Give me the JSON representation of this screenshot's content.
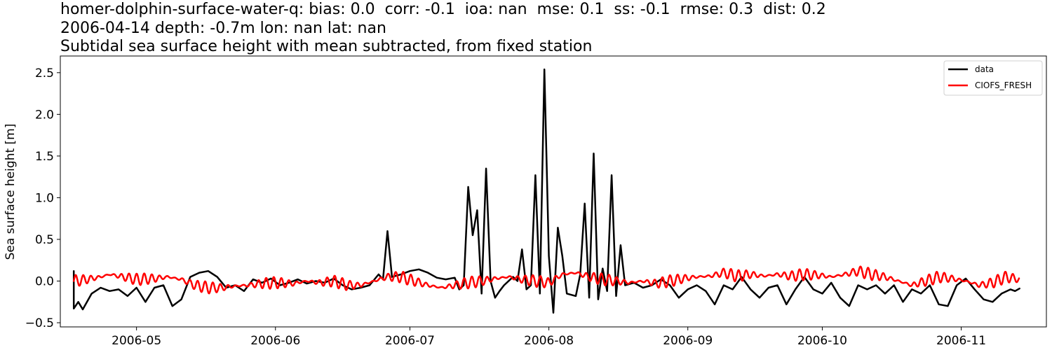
{
  "title_lines": [
    "homer-dolphin-surface-water-q: bias: 0.0  corr: -0.1  ioa: nan  mse: 0.1  ss: -0.1  rmse: 0.3  dist: 0.2",
    "2006-04-14 depth: -0.7m lon: nan lat: nan",
    "Subtidal sea surface height with mean subtracted, from fixed station"
  ],
  "chart_data": {
    "type": "line",
    "ylabel": "Sea surface height [m]",
    "xlabel": "",
    "xlim": [
      "2006-04-14",
      "2006-11-20"
    ],
    "ylim": [
      -0.55,
      2.7
    ],
    "yticks": [
      -0.5,
      0.0,
      0.5,
      1.0,
      1.5,
      2.0,
      2.5
    ],
    "ytick_labels": [
      "−0.5",
      "0.0",
      "0.5",
      "1.0",
      "1.5",
      "2.0",
      "2.5"
    ],
    "xticks": [
      "2006-05-01",
      "2006-06-01",
      "2006-07-01",
      "2006-08-01",
      "2006-09-01",
      "2006-10-01",
      "2006-11-01"
    ],
    "xtick_labels": [
      "2006-05",
      "2006-06",
      "2006-07",
      "2006-08",
      "2006-09",
      "2006-10",
      "2006-11"
    ],
    "grid": false,
    "legend_position": "top-right",
    "series": [
      {
        "name": "data",
        "color": "#000000",
        "points": [
          [
            "2006-04-17",
            0.12
          ],
          [
            "2006-04-17",
            -0.33
          ],
          [
            "2006-04-18",
            -0.25
          ],
          [
            "2006-04-19",
            -0.34
          ],
          [
            "2006-04-21",
            -0.15
          ],
          [
            "2006-04-23",
            -0.08
          ],
          [
            "2006-04-25",
            -0.12
          ],
          [
            "2006-04-27",
            -0.1
          ],
          [
            "2006-04-29",
            -0.18
          ],
          [
            "2006-05-01",
            -0.08
          ],
          [
            "2006-05-03",
            -0.25
          ],
          [
            "2006-05-05",
            -0.08
          ],
          [
            "2006-05-07",
            -0.05
          ],
          [
            "2006-05-09",
            -0.3
          ],
          [
            "2006-05-11",
            -0.22
          ],
          [
            "2006-05-13",
            0.05
          ],
          [
            "2006-05-15",
            0.1
          ],
          [
            "2006-05-17",
            0.12
          ],
          [
            "2006-05-19",
            0.05
          ],
          [
            "2006-05-21",
            -0.08
          ],
          [
            "2006-05-23",
            -0.05
          ],
          [
            "2006-05-25",
            -0.12
          ],
          [
            "2006-05-27",
            0.02
          ],
          [
            "2006-05-29",
            -0.02
          ],
          [
            "2006-05-31",
            0.03
          ],
          [
            "2006-06-02",
            -0.05
          ],
          [
            "2006-06-04",
            -0.02
          ],
          [
            "2006-06-06",
            0.02
          ],
          [
            "2006-06-08",
            -0.03
          ],
          [
            "2006-06-10",
            0.0
          ],
          [
            "2006-06-12",
            -0.02
          ],
          [
            "2006-06-14",
            0.03
          ],
          [
            "2006-06-16",
            -0.05
          ],
          [
            "2006-06-18",
            -0.1
          ],
          [
            "2006-06-20",
            -0.08
          ],
          [
            "2006-06-22",
            -0.05
          ],
          [
            "2006-06-24",
            0.08
          ],
          [
            "2006-06-25",
            0.02
          ],
          [
            "2006-06-26",
            0.6
          ],
          [
            "2006-06-27",
            0.05
          ],
          [
            "2006-06-29",
            0.08
          ],
          [
            "2006-07-01",
            0.12
          ],
          [
            "2006-07-03",
            0.14
          ],
          [
            "2006-07-05",
            0.1
          ],
          [
            "2006-07-07",
            0.04
          ],
          [
            "2006-07-09",
            0.02
          ],
          [
            "2006-07-11",
            0.04
          ],
          [
            "2006-07-12",
            -0.1
          ],
          [
            "2006-07-13",
            -0.05
          ],
          [
            "2006-07-14",
            1.13
          ],
          [
            "2006-07-15",
            0.55
          ],
          [
            "2006-07-16",
            0.85
          ],
          [
            "2006-07-17",
            -0.15
          ],
          [
            "2006-07-18",
            1.35
          ],
          [
            "2006-07-19",
            0.0
          ],
          [
            "2006-07-20",
            -0.2
          ],
          [
            "2006-07-21",
            -0.12
          ],
          [
            "2006-07-22",
            -0.05
          ],
          [
            "2006-07-24",
            0.05
          ],
          [
            "2006-07-25",
            0.0
          ],
          [
            "2006-07-26",
            0.38
          ],
          [
            "2006-07-27",
            -0.1
          ],
          [
            "2006-07-28",
            -0.05
          ],
          [
            "2006-07-29",
            1.27
          ],
          [
            "2006-07-30",
            -0.15
          ],
          [
            "2006-07-31",
            2.54
          ],
          [
            "2006-08-01",
            0.3
          ],
          [
            "2006-08-02",
            -0.38
          ],
          [
            "2006-08-03",
            0.64
          ],
          [
            "2006-08-04",
            0.3
          ],
          [
            "2006-08-05",
            -0.15
          ],
          [
            "2006-08-07",
            -0.18
          ],
          [
            "2006-08-08",
            0.08
          ],
          [
            "2006-08-09",
            0.93
          ],
          [
            "2006-08-10",
            -0.2
          ],
          [
            "2006-08-11",
            1.53
          ],
          [
            "2006-08-12",
            -0.22
          ],
          [
            "2006-08-13",
            0.15
          ],
          [
            "2006-08-14",
            -0.12
          ],
          [
            "2006-08-15",
            1.27
          ],
          [
            "2006-08-16",
            -0.18
          ],
          [
            "2006-08-17",
            0.43
          ],
          [
            "2006-08-18",
            -0.05
          ],
          [
            "2006-08-20",
            -0.02
          ],
          [
            "2006-08-22",
            -0.08
          ],
          [
            "2006-08-24",
            -0.05
          ],
          [
            "2006-08-26",
            0.02
          ],
          [
            "2006-08-28",
            -0.05
          ],
          [
            "2006-08-30",
            -0.2
          ],
          [
            "2006-09-01",
            -0.1
          ],
          [
            "2006-09-03",
            -0.05
          ],
          [
            "2006-09-05",
            -0.12
          ],
          [
            "2006-09-07",
            -0.28
          ],
          [
            "2006-09-09",
            -0.05
          ],
          [
            "2006-09-11",
            -0.1
          ],
          [
            "2006-09-13",
            0.05
          ],
          [
            "2006-09-15",
            -0.1
          ],
          [
            "2006-09-17",
            -0.2
          ],
          [
            "2006-09-19",
            -0.08
          ],
          [
            "2006-09-21",
            -0.05
          ],
          [
            "2006-09-23",
            -0.28
          ],
          [
            "2006-09-25",
            -0.1
          ],
          [
            "2006-09-27",
            0.05
          ],
          [
            "2006-09-29",
            -0.1
          ],
          [
            "2006-10-01",
            -0.15
          ],
          [
            "2006-10-03",
            -0.02
          ],
          [
            "2006-10-05",
            -0.2
          ],
          [
            "2006-10-07",
            -0.3
          ],
          [
            "2006-10-09",
            -0.05
          ],
          [
            "2006-10-11",
            -0.1
          ],
          [
            "2006-10-13",
            -0.05
          ],
          [
            "2006-10-15",
            -0.15
          ],
          [
            "2006-10-17",
            -0.05
          ],
          [
            "2006-10-19",
            -0.25
          ],
          [
            "2006-10-21",
            -0.1
          ],
          [
            "2006-10-23",
            -0.15
          ],
          [
            "2006-10-25",
            -0.05
          ],
          [
            "2006-10-27",
            -0.28
          ],
          [
            "2006-10-29",
            -0.3
          ],
          [
            "2006-10-31",
            -0.05
          ],
          [
            "2006-11-02",
            0.03
          ],
          [
            "2006-11-04",
            -0.1
          ],
          [
            "2006-11-06",
            -0.22
          ],
          [
            "2006-11-08",
            -0.25
          ],
          [
            "2006-11-10",
            -0.15
          ],
          [
            "2006-11-12",
            -0.1
          ],
          [
            "2006-11-13",
            -0.12
          ],
          [
            "2006-11-14",
            -0.09
          ]
        ]
      },
      {
        "name": "CIOFS_FRESH",
        "color": "#ff0000",
        "tidal_ripple_amplitude_m": 0.07,
        "points": [
          [
            "2006-04-17",
            0.0
          ],
          [
            "2006-04-20",
            0.02
          ],
          [
            "2006-04-23",
            0.05
          ],
          [
            "2006-04-25",
            0.08
          ],
          [
            "2006-04-28",
            0.05
          ],
          [
            "2006-05-01",
            0.02
          ],
          [
            "2006-05-05",
            0.03
          ],
          [
            "2006-05-08",
            0.05
          ],
          [
            "2006-05-11",
            0.02
          ],
          [
            "2006-05-14",
            -0.05
          ],
          [
            "2006-05-17",
            -0.08
          ],
          [
            "2006-05-20",
            -0.08
          ],
          [
            "2006-05-23",
            -0.06
          ],
          [
            "2006-05-26",
            -0.05
          ],
          [
            "2006-05-29",
            -0.03
          ],
          [
            "2006-06-01",
            -0.02
          ],
          [
            "2006-06-05",
            -0.03
          ],
          [
            "2006-06-08",
            0.0
          ],
          [
            "2006-06-11",
            -0.02
          ],
          [
            "2006-06-14",
            0.0
          ],
          [
            "2006-06-17",
            -0.05
          ],
          [
            "2006-06-20",
            -0.05
          ],
          [
            "2006-06-23",
            0.0
          ],
          [
            "2006-06-26",
            0.05
          ],
          [
            "2006-06-29",
            0.05
          ],
          [
            "2006-07-02",
            0.0
          ],
          [
            "2006-07-05",
            -0.05
          ],
          [
            "2006-07-08",
            -0.08
          ],
          [
            "2006-07-11",
            -0.05
          ],
          [
            "2006-07-14",
            -0.02
          ],
          [
            "2006-07-17",
            0.0
          ],
          [
            "2006-07-20",
            0.03
          ],
          [
            "2006-07-23",
            0.05
          ],
          [
            "2006-07-26",
            0.02
          ],
          [
            "2006-07-29",
            0.0
          ],
          [
            "2006-08-01",
            -0.02
          ],
          [
            "2006-08-04",
            0.08
          ],
          [
            "2006-08-07",
            0.1
          ],
          [
            "2006-08-10",
            0.05
          ],
          [
            "2006-08-13",
            0.02
          ],
          [
            "2006-08-16",
            0.0
          ],
          [
            "2006-08-19",
            -0.02
          ],
          [
            "2006-08-22",
            0.0
          ],
          [
            "2006-08-25",
            -0.03
          ],
          [
            "2006-08-28",
            0.0
          ],
          [
            "2006-08-31",
            0.03
          ],
          [
            "2006-09-03",
            0.05
          ],
          [
            "2006-09-06",
            0.06
          ],
          [
            "2006-09-09",
            0.1
          ],
          [
            "2006-09-12",
            0.06
          ],
          [
            "2006-09-15",
            0.08
          ],
          [
            "2006-09-18",
            0.06
          ],
          [
            "2006-09-21",
            0.08
          ],
          [
            "2006-09-24",
            0.06
          ],
          [
            "2006-09-27",
            0.08
          ],
          [
            "2006-09-30",
            0.07
          ],
          [
            "2006-10-03",
            0.05
          ],
          [
            "2006-10-06",
            0.08
          ],
          [
            "2006-10-09",
            0.12
          ],
          [
            "2006-10-12",
            0.08
          ],
          [
            "2006-10-15",
            0.05
          ],
          [
            "2006-10-18",
            0.0
          ],
          [
            "2006-10-21",
            -0.05
          ],
          [
            "2006-10-24",
            0.0
          ],
          [
            "2006-10-27",
            0.05
          ],
          [
            "2006-10-30",
            0.03
          ],
          [
            "2006-11-02",
            0.0
          ],
          [
            "2006-11-05",
            -0.05
          ],
          [
            "2006-11-08",
            -0.02
          ],
          [
            "2006-11-11",
            0.05
          ],
          [
            "2006-11-14",
            0.02
          ]
        ]
      }
    ]
  }
}
